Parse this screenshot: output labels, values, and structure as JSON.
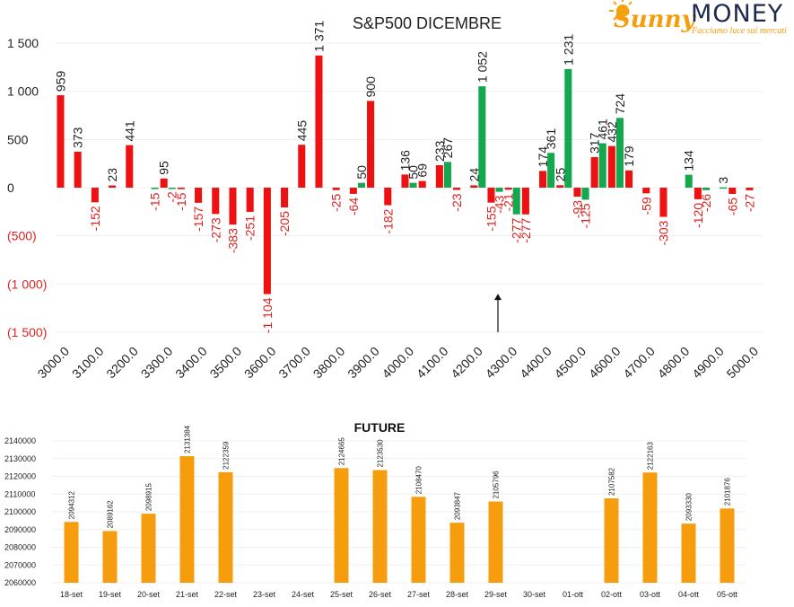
{
  "logo": {
    "brand_part1": "Sunny",
    "brand_part2": "MONEY",
    "tagline": "Facciamo luce sui mercati"
  },
  "colors": {
    "red": "#ee1111",
    "green": "#13a84e",
    "orange": "#f59d0c",
    "negative_label": "#dd2222",
    "grid": "#efefef",
    "text": "#222222"
  },
  "chart_data": [
    {
      "type": "bar",
      "title": "S&P500 DICEMBRE",
      "xlabel": "",
      "ylabel": "",
      "ylim": [
        -1500,
        1500
      ],
      "y_ticks": [
        {
          "value": 1500,
          "label": "1 500"
        },
        {
          "value": 1000,
          "label": "1 000"
        },
        {
          "value": 500,
          "label": "500"
        },
        {
          "value": 0,
          "label": "0"
        },
        {
          "value": -500,
          "label": "(500)"
        },
        {
          "value": -1000,
          "label": "(1 000)"
        },
        {
          "value": -1500,
          "label": "(1 500)"
        }
      ],
      "x_ticks": [
        "3000.0",
        "3100.0",
        "3200.0",
        "3300.0",
        "3400.0",
        "3500.0",
        "3600.0",
        "3700.0",
        "3800.0",
        "3900.0",
        "4000.0",
        "4100.0",
        "4200.0",
        "4300.0",
        "4400.0",
        "4500.0",
        "4600.0",
        "4700.0",
        "4800.0",
        "4900.0",
        "5000.0"
      ],
      "strikes": [
        3000,
        3050,
        3100,
        3150,
        3200,
        3250,
        3300,
        3350,
        3400,
        3450,
        3500,
        3550,
        3600,
        3650,
        3700,
        3750,
        3800,
        3850,
        3900,
        3950,
        4000,
        4050,
        4100,
        4150,
        4200,
        4250,
        4300,
        4350,
        4400,
        4450,
        4500,
        4550,
        4600,
        4650,
        4700,
        4750,
        4800,
        4850,
        4900,
        4950,
        5000
      ],
      "series": [
        {
          "color": "red",
          "values": [
            959,
            373,
            -152,
            23,
            441,
            0,
            95,
            -15,
            -157,
            -273,
            -383,
            -251,
            -1104,
            -205,
            445,
            1371,
            -25,
            -64,
            900,
            -182,
            136,
            69,
            233,
            -23,
            24,
            -155,
            -21,
            -277,
            174,
            25,
            -93,
            317,
            432,
            179,
            -59,
            -303,
            0,
            -120,
            0,
            -65,
            -27
          ],
          "labels": [
            "959",
            "373",
            "-152",
            "23",
            "441",
            "",
            "95",
            "-15",
            "-157",
            "-273",
            "-383",
            "-251",
            "-1 104",
            "-205",
            "445",
            "1 371",
            "-25",
            "-64",
            "900",
            "-182",
            "136",
            "69",
            "233",
            "-23",
            "24",
            "-155",
            "-21",
            "-277",
            "174",
            "25",
            "-93",
            "317",
            "432",
            "179",
            "-59",
            "-303",
            "",
            "-120",
            "",
            "-65",
            "-27"
          ]
        },
        {
          "color": "green",
          "values": [
            0,
            0,
            0,
            0,
            0,
            -15,
            -2,
            0,
            0,
            0,
            0,
            0,
            0,
            0,
            0,
            0,
            0,
            50,
            0,
            0,
            50,
            0,
            267,
            0,
            1052,
            -43,
            -277,
            0,
            361,
            1231,
            -125,
            461,
            724,
            0,
            0,
            0,
            134,
            -26,
            3,
            0,
            0
          ],
          "labels": [
            "",
            "",
            "",
            "",
            "",
            "-15",
            "-2",
            "",
            "",
            "",
            "",
            "",
            "",
            "",
            "",
            "",
            "",
            "50",
            "",
            "",
            "50",
            "",
            "267",
            "",
            "1 052",
            "-43",
            "-277",
            "",
            "361",
            "1 231",
            "-125",
            "461",
            "724",
            "",
            "",
            "",
            "134",
            "-26",
            "3",
            "",
            ""
          ]
        }
      ],
      "annotation": {
        "type": "arrow",
        "at_strike": 4250,
        "from_value": -1500,
        "to_value": -1100
      }
    },
    {
      "type": "bar",
      "title": "FUTURE",
      "xlabel": "",
      "ylabel": "",
      "ylim": [
        2060000,
        2140000
      ],
      "y_ticks": [
        "2060000",
        "2070000",
        "2080000",
        "2090000",
        "2100000",
        "2110000",
        "2120000",
        "2130000",
        "2140000"
      ],
      "categories": [
        "18-set",
        "19-set",
        "20-set",
        "21-set",
        "22-set",
        "23-set",
        "24-set",
        "25-set",
        "26-set",
        "27-set",
        "28-set",
        "29-set",
        "30-set",
        "01-ott",
        "02-ott",
        "03-ott",
        "04-ott",
        "05-ott"
      ],
      "values": [
        2094312,
        2089162,
        2098915,
        2131384,
        2122359,
        null,
        null,
        2124665,
        2123530,
        2108470,
        2093847,
        2105796,
        null,
        null,
        2107582,
        2122163,
        2093330,
        2101876
      ],
      "labels": [
        "2094312",
        "2089162",
        "2098915",
        "2131384",
        "2122359",
        "",
        "",
        "2124665",
        "2123530",
        "2108470",
        "2093847",
        "2105796",
        "",
        "",
        "2107582",
        "2122163",
        "2093330",
        "2101876"
      ],
      "color": "orange"
    }
  ]
}
